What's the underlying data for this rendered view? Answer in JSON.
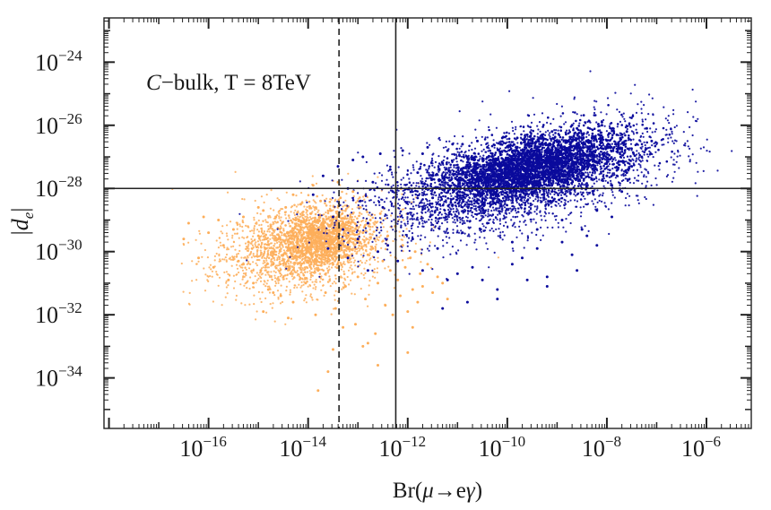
{
  "chart_data": {
    "type": "scatter",
    "title": "",
    "annotation": {
      "prefix": "C",
      "text": "−bulk, T = 8TeV"
    },
    "xlabel": {
      "prefix": "Br(",
      "greek_mu": "μ",
      "arrow": "→",
      "e": "e",
      "greek_gamma": "γ",
      "suffix": ")"
    },
    "ylabel": {
      "left_bar": "|",
      "d": "d",
      "sub": "e",
      "right_bar": "|"
    },
    "x_scale": "log",
    "y_scale": "log",
    "xlim_log10": [
      -18.1,
      -5.1
    ],
    "ylim_log10": [
      -35.6,
      -22.6
    ],
    "x_ticks": [
      {
        "base": "10",
        "exp": "−16",
        "log10": -16
      },
      {
        "base": "10",
        "exp": "−14",
        "log10": -14
      },
      {
        "base": "10",
        "exp": "−12",
        "log10": -12
      },
      {
        "base": "10",
        "exp": "−10",
        "log10": -10
      },
      {
        "base": "10",
        "exp": "−8",
        "log10": -8
      },
      {
        "base": "10",
        "exp": "−6",
        "log10": -6
      }
    ],
    "y_ticks": [
      {
        "base": "10",
        "exp": "−24",
        "log10": -24
      },
      {
        "base": "10",
        "exp": "−26",
        "log10": -26
      },
      {
        "base": "10",
        "exp": "−28",
        "log10": -28
      },
      {
        "base": "10",
        "exp": "−30",
        "log10": -30
      },
      {
        "base": "10",
        "exp": "−32",
        "log10": -32
      },
      {
        "base": "10",
        "exp": "−34",
        "log10": -34
      }
    ],
    "reference_lines": [
      {
        "orientation": "vertical",
        "log10": -13.38,
        "style": "dashed"
      },
      {
        "orientation": "vertical",
        "log10": -12.24,
        "style": "solid"
      },
      {
        "orientation": "horizontal",
        "log10": -28.0,
        "style": "solid"
      }
    ],
    "series": [
      {
        "name": "orange",
        "color": "#fdae5a",
        "points_log10": [
          [
            -16.5,
            -29.6
          ],
          [
            -16.4,
            -29.1
          ],
          [
            -16.2,
            -30.2
          ],
          [
            -16.0,
            -29.4
          ],
          [
            -15.9,
            -30.5
          ],
          [
            -15.8,
            -29.0
          ],
          [
            -15.7,
            -29.8
          ],
          [
            -15.6,
            -30.9
          ],
          [
            -15.5,
            -29.3
          ],
          [
            -15.4,
            -30.3
          ],
          [
            -15.3,
            -28.9
          ],
          [
            -15.2,
            -29.7
          ],
          [
            -15.1,
            -31.0
          ],
          [
            -15.0,
            -29.5
          ],
          [
            -14.95,
            -30.6
          ],
          [
            -14.9,
            -28.7
          ],
          [
            -14.85,
            -29.9
          ],
          [
            -14.8,
            -31.2
          ],
          [
            -14.75,
            -29.2
          ],
          [
            -14.7,
            -30.4
          ],
          [
            -14.65,
            -28.9
          ],
          [
            -14.6,
            -29.6
          ],
          [
            -14.55,
            -31.4
          ],
          [
            -14.5,
            -30.1
          ],
          [
            -14.45,
            -28.6
          ],
          [
            -14.4,
            -29.4
          ],
          [
            -14.35,
            -30.7
          ],
          [
            -14.3,
            -31.6
          ],
          [
            -14.25,
            -29.0
          ],
          [
            -14.2,
            -30.0
          ],
          [
            -14.15,
            -28.5
          ],
          [
            -14.1,
            -29.8
          ],
          [
            -14.05,
            -31.0
          ],
          [
            -14.0,
            -30.3
          ],
          [
            -13.95,
            -28.8
          ],
          [
            -13.9,
            -29.5
          ],
          [
            -13.85,
            -32.0
          ],
          [
            -13.8,
            -30.6
          ],
          [
            -13.75,
            -28.4
          ],
          [
            -13.7,
            -29.2
          ],
          [
            -13.65,
            -31.3
          ],
          [
            -13.6,
            -30.0
          ],
          [
            -13.55,
            -28.7
          ],
          [
            -13.5,
            -29.7
          ],
          [
            -13.45,
            -31.8
          ],
          [
            -13.4,
            -30.4
          ],
          [
            -13.35,
            -28.3
          ],
          [
            -13.3,
            -29.1
          ],
          [
            -13.25,
            -31.1
          ],
          [
            -13.2,
            -30.2
          ],
          [
            -13.15,
            -28.9
          ],
          [
            -13.1,
            -29.6
          ],
          [
            -13.05,
            -32.3
          ],
          [
            -13.0,
            -30.8
          ],
          [
            -12.95,
            -28.6
          ],
          [
            -12.9,
            -29.4
          ],
          [
            -12.85,
            -31.5
          ],
          [
            -12.8,
            -30.1
          ],
          [
            -12.75,
            -29.0
          ],
          [
            -12.7,
            -29.9
          ],
          [
            -12.65,
            -32.6
          ],
          [
            -12.6,
            -31.0
          ],
          [
            -12.55,
            -28.8
          ],
          [
            -12.5,
            -30.3
          ],
          [
            -12.45,
            -31.7
          ],
          [
            -12.4,
            -29.5
          ],
          [
            -12.35,
            -30.6
          ],
          [
            -12.3,
            -32.0
          ],
          [
            -12.25,
            -29.2
          ],
          [
            -12.2,
            -30.9
          ],
          [
            -12.15,
            -31.4
          ],
          [
            -12.1,
            -29.8
          ],
          [
            -12.05,
            -30.5
          ],
          [
            -12.0,
            -31.9
          ],
          [
            -11.95,
            -30.2
          ],
          [
            -11.9,
            -31.2
          ],
          [
            -11.85,
            -30.0
          ],
          [
            -11.8,
            -31.6
          ],
          [
            -11.75,
            -30.7
          ],
          [
            -11.7,
            -31.1
          ],
          [
            -11.6,
            -30.4
          ],
          [
            -11.5,
            -31.3
          ],
          [
            -11.4,
            -30.8
          ],
          [
            -11.3,
            -31.0
          ],
          [
            -11.2,
            -31.5
          ],
          [
            -13.8,
            -34.4
          ],
          [
            -13.6,
            -33.8
          ],
          [
            -12.6,
            -33.6
          ],
          [
            -12.0,
            -33.2
          ],
          [
            -12.8,
            -32.9
          ],
          [
            -14.9,
            -31.9
          ],
          [
            -15.3,
            -30.4
          ],
          [
            -16.1,
            -28.9
          ],
          [
            -15.0,
            -28.6
          ],
          [
            -14.3,
            -28.2
          ],
          [
            -13.9,
            -27.9
          ],
          [
            -13.4,
            -27.8
          ],
          [
            -13.1,
            -28.1
          ],
          [
            -14.7,
            -31.3
          ],
          [
            -14.4,
            -32.1
          ],
          [
            -13.3,
            -32.4
          ],
          [
            -13.5,
            -33.1
          ],
          [
            -12.9,
            -33.0
          ],
          [
            -11.9,
            -32.4
          ]
        ]
      },
      {
        "name": "blue",
        "color": "#0a0a9c",
        "points_log10": [
          [
            -13.9,
            -28.2
          ],
          [
            -13.7,
            -27.6
          ],
          [
            -13.5,
            -28.9
          ],
          [
            -13.4,
            -27.3
          ],
          [
            -13.3,
            -29.3
          ],
          [
            -13.2,
            -28.0
          ],
          [
            -13.1,
            -27.1
          ],
          [
            -13.0,
            -29.6
          ],
          [
            -12.95,
            -28.4
          ],
          [
            -12.9,
            -27.0
          ],
          [
            -12.8,
            -29.1
          ],
          [
            -12.7,
            -27.8
          ],
          [
            -12.6,
            -30.0
          ],
          [
            -12.55,
            -26.9
          ],
          [
            -12.5,
            -28.6
          ],
          [
            -12.4,
            -29.8
          ],
          [
            -12.35,
            -27.4
          ],
          [
            -12.3,
            -28.1
          ],
          [
            -12.2,
            -30.3
          ],
          [
            -12.1,
            -26.8
          ],
          [
            -12.0,
            -28.8
          ],
          [
            -11.9,
            -29.6
          ],
          [
            -11.8,
            -27.5
          ],
          [
            -11.7,
            -30.6
          ],
          [
            -11.6,
            -26.7
          ],
          [
            -11.5,
            -28.3
          ],
          [
            -11.4,
            -29.9
          ],
          [
            -11.3,
            -27.2
          ],
          [
            -11.2,
            -30.9
          ],
          [
            -11.1,
            -26.6
          ],
          [
            -11.0,
            -28.0
          ],
          [
            -10.9,
            -29.4
          ],
          [
            -10.8,
            -27.0
          ],
          [
            -10.7,
            -30.5
          ],
          [
            -10.6,
            -26.5
          ],
          [
            -10.5,
            -28.5
          ],
          [
            -10.4,
            -29.1
          ],
          [
            -10.3,
            -26.9
          ],
          [
            -10.2,
            -31.2
          ],
          [
            -10.1,
            -26.4
          ],
          [
            -10.0,
            -27.9
          ],
          [
            -9.9,
            -29.7
          ],
          [
            -9.8,
            -26.8
          ],
          [
            -9.7,
            -30.2
          ],
          [
            -9.6,
            -26.3
          ],
          [
            -9.5,
            -28.2
          ],
          [
            -9.4,
            -29.3
          ],
          [
            -9.3,
            -26.6
          ],
          [
            -9.2,
            -30.8
          ],
          [
            -9.1,
            -26.2
          ],
          [
            -9.0,
            -27.7
          ],
          [
            -8.9,
            -29.0
          ],
          [
            -8.8,
            -26.5
          ],
          [
            -8.7,
            -30.1
          ],
          [
            -8.6,
            -26.1
          ],
          [
            -8.5,
            -28.0
          ],
          [
            -8.4,
            -29.5
          ],
          [
            -8.3,
            -26.4
          ],
          [
            -8.2,
            -28.7
          ],
          [
            -8.1,
            -26.0
          ],
          [
            -8.0,
            -27.6
          ],
          [
            -7.9,
            -28.9
          ],
          [
            -7.8,
            -26.3
          ],
          [
            -7.7,
            -28.1
          ],
          [
            -7.6,
            -26.2
          ],
          [
            -7.5,
            -27.3
          ],
          [
            -7.4,
            -26.6
          ],
          [
            -7.3,
            -27.0
          ],
          [
            -7.2,
            -26.1
          ],
          [
            -7.1,
            -26.5
          ],
          [
            -10.8,
            -31.6
          ],
          [
            -11.3,
            -31.8
          ],
          [
            -10.2,
            -31.5
          ],
          [
            -9.6,
            -30.9
          ],
          [
            -9.2,
            -31.1
          ],
          [
            -8.6,
            -30.6
          ],
          [
            -8.2,
            -29.8
          ],
          [
            -12.8,
            -30.6
          ],
          [
            -13.2,
            -30.2
          ],
          [
            -13.6,
            -29.9
          ],
          [
            -11.0,
            -30.7
          ],
          [
            -10.5,
            -30.9
          ],
          [
            -9.9,
            -30.4
          ],
          [
            -9.4,
            -29.9
          ],
          [
            -8.9,
            -29.7
          ],
          [
            -8.5,
            -29.3
          ],
          [
            -7.9,
            -27.9
          ],
          [
            -7.6,
            -27.5
          ],
          [
            -11.7,
            -26.9
          ],
          [
            -11.2,
            -26.8
          ],
          [
            -10.9,
            -26.6
          ],
          [
            -10.4,
            -26.7
          ],
          [
            -9.8,
            -26.4
          ],
          [
            -9.3,
            -26.3
          ],
          [
            -8.7,
            -26.0
          ],
          [
            -8.1,
            -25.9
          ]
        ]
      }
    ]
  }
}
